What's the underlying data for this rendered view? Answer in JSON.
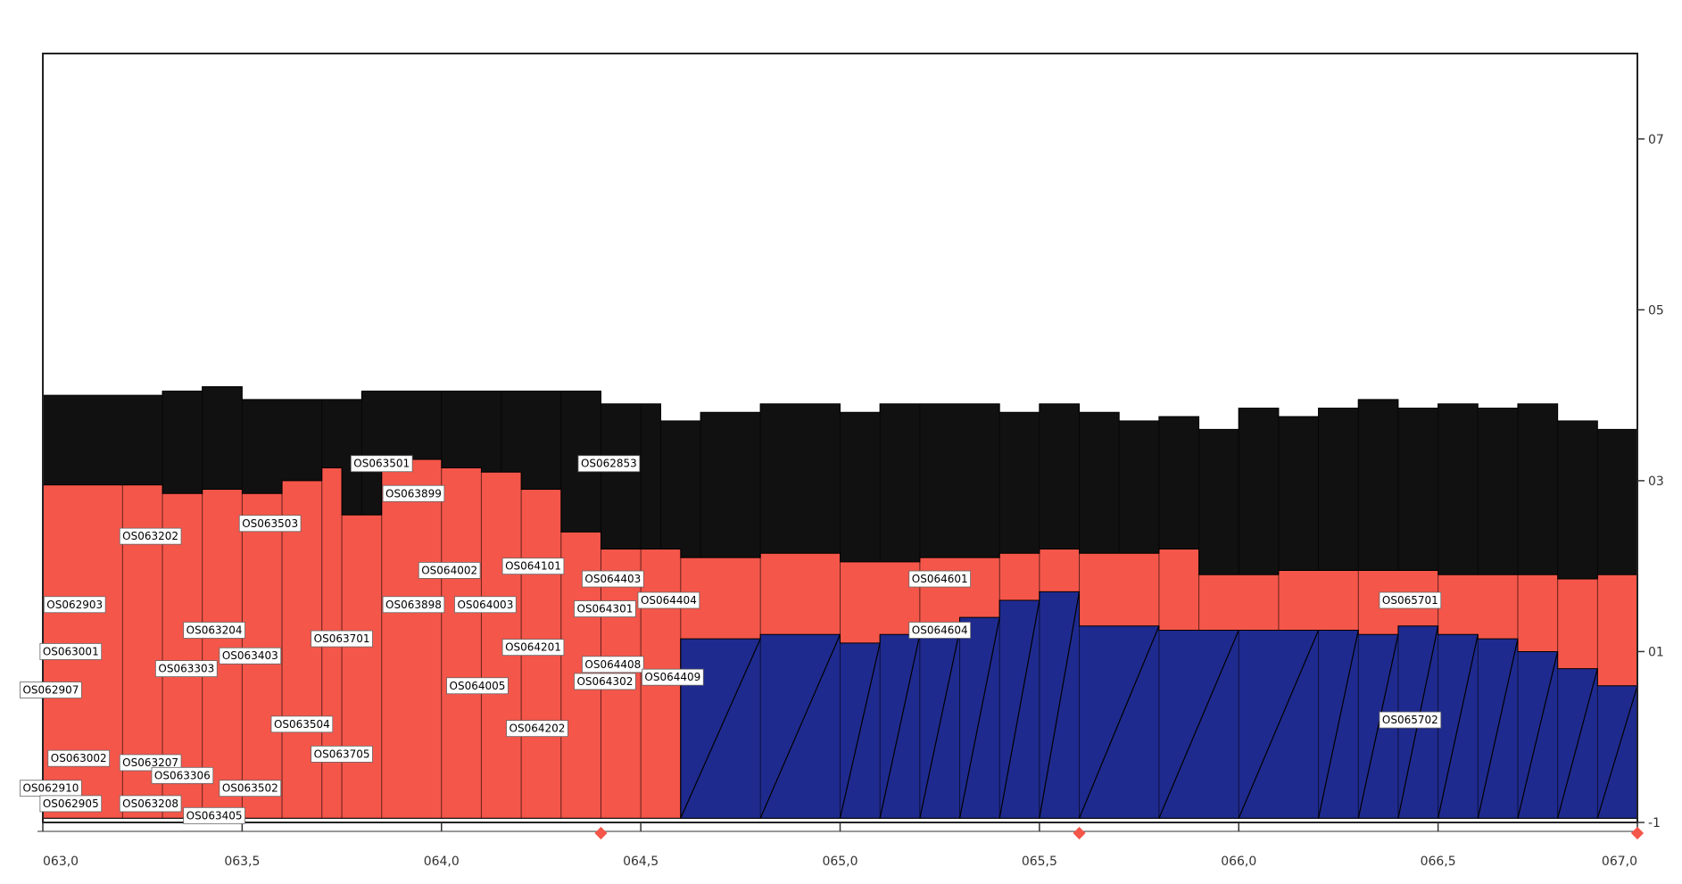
{
  "chart_data": {
    "type": "area",
    "title": "",
    "xlabel": "",
    "ylabel": "",
    "x_range": [
      63.0,
      67.0
    ],
    "y_range": [
      -1,
      8
    ],
    "x_ticks": [
      {
        "value": 63.0,
        "label": "063,0"
      },
      {
        "value": 63.5,
        "label": "063,5"
      },
      {
        "value": 64.0,
        "label": "064,0"
      },
      {
        "value": 64.5,
        "label": "064,5"
      },
      {
        "value": 65.0,
        "label": "065,0"
      },
      {
        "value": 65.5,
        "label": "065,5"
      },
      {
        "value": 66.0,
        "label": "066,0"
      },
      {
        "value": 66.5,
        "label": "066,5"
      },
      {
        "value": 67.0,
        "label": "067,0"
      }
    ],
    "y_ticks": [
      {
        "value": 7,
        "label": "07"
      },
      {
        "value": 5,
        "label": "05"
      },
      {
        "value": 3,
        "label": "03"
      },
      {
        "value": 1,
        "label": "01"
      },
      {
        "value": -1,
        "label": "-1"
      }
    ],
    "colors": {
      "black_layer": "#111111",
      "red_layer": "#f5564a",
      "blue_layer": "#1f2a8e",
      "green_layer": "#2f8a3f",
      "marker": "#f5564a",
      "axis": "#333333"
    },
    "markers_x": [
      64.4,
      65.6,
      67.0
    ],
    "layers": [
      {
        "name": "",
        "color_key": "black_layer",
        "points": [
          [
            63.0,
            4.0
          ],
          [
            63.3,
            4.05
          ],
          [
            63.4,
            4.1
          ],
          [
            63.5,
            3.95
          ],
          [
            63.7,
            3.95
          ],
          [
            63.8,
            4.05
          ],
          [
            64.0,
            4.05
          ],
          [
            64.15,
            4.05
          ],
          [
            64.3,
            4.05
          ],
          [
            64.4,
            3.9
          ],
          [
            64.5,
            3.9
          ],
          [
            64.55,
            3.7
          ],
          [
            64.65,
            3.8
          ],
          [
            64.8,
            3.9
          ],
          [
            65.0,
            3.8
          ],
          [
            65.1,
            3.9
          ],
          [
            65.2,
            3.9
          ],
          [
            65.4,
            3.8
          ],
          [
            65.5,
            3.9
          ],
          [
            65.6,
            3.8
          ],
          [
            65.7,
            3.7
          ],
          [
            65.8,
            3.75
          ],
          [
            65.9,
            3.6
          ],
          [
            66.0,
            3.85
          ],
          [
            66.1,
            3.75
          ],
          [
            66.2,
            3.85
          ],
          [
            66.3,
            3.95
          ],
          [
            66.4,
            3.85
          ],
          [
            66.5,
            3.9
          ],
          [
            66.6,
            3.85
          ],
          [
            66.7,
            3.9
          ],
          [
            66.8,
            3.7
          ],
          [
            66.9,
            3.6
          ],
          [
            67.0,
            3.6
          ]
        ]
      },
      {
        "name": "",
        "color_key": "red_layer",
        "points": [
          [
            63.0,
            2.95
          ],
          [
            63.2,
            2.95
          ],
          [
            63.3,
            2.85
          ],
          [
            63.4,
            2.9
          ],
          [
            63.5,
            2.85
          ],
          [
            63.6,
            3.0
          ],
          [
            63.7,
            3.15
          ],
          [
            63.75,
            2.6
          ],
          [
            63.85,
            3.25
          ],
          [
            64.0,
            3.15
          ],
          [
            64.1,
            3.1
          ],
          [
            64.2,
            2.9
          ],
          [
            64.3,
            2.4
          ],
          [
            64.4,
            2.2
          ],
          [
            64.5,
            2.2
          ],
          [
            64.6,
            2.1
          ],
          [
            64.8,
            2.15
          ],
          [
            65.0,
            2.05
          ],
          [
            65.2,
            2.1
          ],
          [
            65.4,
            2.15
          ],
          [
            65.5,
            2.2
          ],
          [
            65.6,
            2.15
          ],
          [
            65.8,
            2.2
          ],
          [
            65.9,
            1.9
          ],
          [
            66.1,
            1.95
          ],
          [
            66.3,
            1.95
          ],
          [
            66.5,
            1.9
          ],
          [
            66.7,
            1.9
          ],
          [
            66.8,
            1.85
          ],
          [
            66.9,
            1.9
          ],
          [
            67.0,
            2.0
          ]
        ]
      },
      {
        "name": "",
        "color_key": "blue_layer",
        "points": [
          [
            64.6,
            1.15
          ],
          [
            64.8,
            1.2
          ],
          [
            65.0,
            1.1
          ],
          [
            65.1,
            1.2
          ],
          [
            65.2,
            1.25
          ],
          [
            65.3,
            1.4
          ],
          [
            65.4,
            1.6
          ],
          [
            65.5,
            1.7
          ],
          [
            65.6,
            1.3
          ],
          [
            65.8,
            1.25
          ],
          [
            66.0,
            1.25
          ],
          [
            66.2,
            1.25
          ],
          [
            66.3,
            1.2
          ],
          [
            66.4,
            1.3
          ],
          [
            66.5,
            1.2
          ],
          [
            66.6,
            1.15
          ],
          [
            66.7,
            1.0
          ],
          [
            66.8,
            0.8
          ],
          [
            66.9,
            0.6
          ],
          [
            67.0,
            0.4
          ]
        ]
      }
    ],
    "segment_labels": [
      {
        "text": "OS063501",
        "x": 63.85,
        "y": 3.2,
        "dark": false
      },
      {
        "text": "OS063899",
        "x": 63.93,
        "y": 2.85,
        "dark": false
      },
      {
        "text": "OS062853",
        "x": 64.42,
        "y": 3.2,
        "dark": false
      },
      {
        "text": "OS063202",
        "x": 63.27,
        "y": 2.35,
        "dark": false
      },
      {
        "text": "OS063503",
        "x": 63.57,
        "y": 2.5,
        "dark": false
      },
      {
        "text": "OS064101",
        "x": 64.23,
        "y": 2.0,
        "dark": false
      },
      {
        "text": "OS064002",
        "x": 64.02,
        "y": 1.95,
        "dark": false
      },
      {
        "text": "OS064403",
        "x": 64.43,
        "y": 1.85,
        "dark": false
      },
      {
        "text": "OS064601",
        "x": 65.25,
        "y": 1.85,
        "dark": false
      },
      {
        "text": "OS062903",
        "x": 63.08,
        "y": 1.55,
        "dark": false
      },
      {
        "text": "OS063898",
        "x": 63.93,
        "y": 1.55,
        "dark": false
      },
      {
        "text": "OS064003",
        "x": 64.11,
        "y": 1.55,
        "dark": false
      },
      {
        "text": "OS064301",
        "x": 64.41,
        "y": 1.5,
        "dark": false
      },
      {
        "text": "OS064404",
        "x": 64.57,
        "y": 1.6,
        "dark": false
      },
      {
        "text": "OS065701",
        "x": 66.43,
        "y": 1.6,
        "dark": false
      },
      {
        "text": "OS063204",
        "x": 63.43,
        "y": 1.25,
        "dark": false
      },
      {
        "text": "OS064604",
        "x": 65.25,
        "y": 1.25,
        "dark": false
      },
      {
        "text": "OS063701",
        "x": 63.75,
        "y": 1.15,
        "dark": false
      },
      {
        "text": "OS063001",
        "x": 63.07,
        "y": 1.0,
        "dark": false
      },
      {
        "text": "OS064201",
        "x": 64.23,
        "y": 1.05,
        "dark": false
      },
      {
        "text": "OS063403",
        "x": 63.52,
        "y": 0.95,
        "dark": false
      },
      {
        "text": "OS063303",
        "x": 63.36,
        "y": 0.8,
        "dark": false
      },
      {
        "text": "OS064408",
        "x": 64.43,
        "y": 0.85,
        "dark": false
      },
      {
        "text": "OS064409",
        "x": 64.58,
        "y": 0.7,
        "dark": false
      },
      {
        "text": "OS064302",
        "x": 64.41,
        "y": 0.65,
        "dark": false
      },
      {
        "text": "OS064005",
        "x": 64.09,
        "y": 0.6,
        "dark": false
      },
      {
        "text": "OS062907",
        "x": 63.02,
        "y": 0.55,
        "dark": false
      },
      {
        "text": "OS065702",
        "x": 66.43,
        "y": 0.2,
        "dark": false
      },
      {
        "text": "OS064202",
        "x": 64.24,
        "y": 0.1,
        "dark": false
      },
      {
        "text": "OS063504",
        "x": 63.65,
        "y": 0.15,
        "dark": false
      },
      {
        "text": "OS063705",
        "x": 63.75,
        "y": -0.2,
        "dark": false
      },
      {
        "text": "OS063002",
        "x": 63.09,
        "y": -0.25,
        "dark": false
      },
      {
        "text": "OS063207",
        "x": 63.27,
        "y": -0.3,
        "dark": false
      },
      {
        "text": "OS063306",
        "x": 63.35,
        "y": -0.45,
        "dark": false
      },
      {
        "text": "OS063502",
        "x": 63.52,
        "y": -0.6,
        "dark": false
      },
      {
        "text": "OS062910",
        "x": 63.02,
        "y": -0.6,
        "dark": false
      },
      {
        "text": "OS063208",
        "x": 63.27,
        "y": -0.78,
        "dark": false
      },
      {
        "text": "OS062905",
        "x": 63.07,
        "y": -0.78,
        "dark": false
      },
      {
        "text": "OS063405",
        "x": 63.43,
        "y": -0.92,
        "dark": false
      }
    ]
  }
}
